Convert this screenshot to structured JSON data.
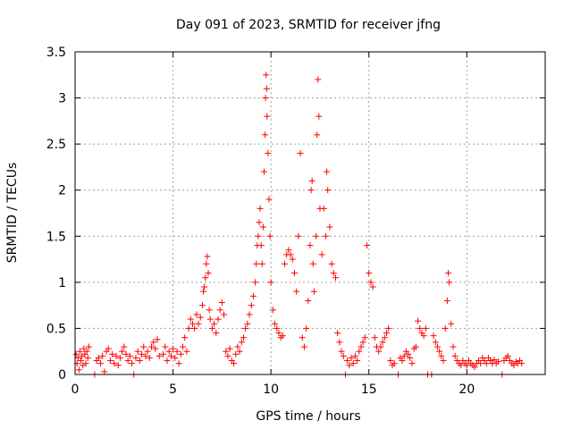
{
  "chart_data": {
    "type": "scatter",
    "title": "Day 091 of 2023, SRMTID for receiver jfng",
    "xlabel": "GPS time / hours",
    "ylabel": "SRMTID / TECUs",
    "xlim": [
      0,
      24
    ],
    "ylim": [
      0,
      3.5
    ],
    "xticks": [
      "0",
      "5",
      "10",
      "15",
      "20"
    ],
    "yticks": [
      "0",
      "0.5",
      "1",
      "1.5",
      "2",
      "2.5",
      "3",
      "3.5"
    ],
    "grid": true,
    "marker": "+",
    "colors": {
      "series": "#ff0000",
      "grid": "#a0a0a0",
      "axis": "#000000"
    },
    "series": [
      {
        "name": "SRMTID",
        "points": [
          [
            0.05,
            0.22
          ],
          [
            0.1,
            0.12
          ],
          [
            0.15,
            0.18
          ],
          [
            0.2,
            0.05
          ],
          [
            0.25,
            0.25
          ],
          [
            0.3,
            0.15
          ],
          [
            0.35,
            0.2
          ],
          [
            0.4,
            0.1
          ],
          [
            0.45,
            0.28
          ],
          [
            0.5,
            0.22
          ],
          [
            0.55,
            0.12
          ],
          [
            0.6,
            0.25
          ],
          [
            0.65,
            0.18
          ],
          [
            0.7,
            0.3
          ],
          [
            1.0,
            0.0
          ],
          [
            1.1,
            0.15
          ],
          [
            1.2,
            0.18
          ],
          [
            1.3,
            0.12
          ],
          [
            1.4,
            0.2
          ],
          [
            1.5,
            0.03
          ],
          [
            1.6,
            0.25
          ],
          [
            1.7,
            0.28
          ],
          [
            1.8,
            0.15
          ],
          [
            1.9,
            0.22
          ],
          [
            2.0,
            0.12
          ],
          [
            2.1,
            0.2
          ],
          [
            2.2,
            0.1
          ],
          [
            2.3,
            0.18
          ],
          [
            2.4,
            0.25
          ],
          [
            2.5,
            0.3
          ],
          [
            2.6,
            0.22
          ],
          [
            2.7,
            0.15
          ],
          [
            2.8,
            0.2
          ],
          [
            2.9,
            0.12
          ],
          [
            3.0,
            0.0
          ],
          [
            3.1,
            0.18
          ],
          [
            3.2,
            0.25
          ],
          [
            3.3,
            0.15
          ],
          [
            3.4,
            0.22
          ],
          [
            3.5,
            0.3
          ],
          [
            3.6,
            0.2
          ],
          [
            3.7,
            0.25
          ],
          [
            3.8,
            0.18
          ],
          [
            3.9,
            0.3
          ],
          [
            4.0,
            0.35
          ],
          [
            4.1,
            0.28
          ],
          [
            4.2,
            0.38
          ],
          [
            4.3,
            0.2
          ],
          [
            4.5,
            0.22
          ],
          [
            4.6,
            0.3
          ],
          [
            4.7,
            0.15
          ],
          [
            4.8,
            0.25
          ],
          [
            4.9,
            0.2
          ],
          [
            5.0,
            0.28
          ],
          [
            5.1,
            0.18
          ],
          [
            5.2,
            0.25
          ],
          [
            5.3,
            0.12
          ],
          [
            5.4,
            0.22
          ],
          [
            5.5,
            0.3
          ],
          [
            5.6,
            0.4
          ],
          [
            5.7,
            0.25
          ],
          [
            5.8,
            0.5
          ],
          [
            5.9,
            0.6
          ],
          [
            6.0,
            0.55
          ],
          [
            6.1,
            0.5
          ],
          [
            6.2,
            0.65
          ],
          [
            6.3,
            0.55
          ],
          [
            6.4,
            0.62
          ],
          [
            6.5,
            0.75
          ],
          [
            6.55,
            0.9
          ],
          [
            6.6,
            0.95
          ],
          [
            6.65,
            1.05
          ],
          [
            6.7,
            1.2
          ],
          [
            6.75,
            1.28
          ],
          [
            6.8,
            1.1
          ],
          [
            6.85,
            0.7
          ],
          [
            6.9,
            0.6
          ],
          [
            7.0,
            0.5
          ],
          [
            7.1,
            0.55
          ],
          [
            7.2,
            0.45
          ],
          [
            7.3,
            0.6
          ],
          [
            7.4,
            0.7
          ],
          [
            7.5,
            0.78
          ],
          [
            7.6,
            0.65
          ],
          [
            7.7,
            0.25
          ],
          [
            7.8,
            0.2
          ],
          [
            7.9,
            0.28
          ],
          [
            8.0,
            0.15
          ],
          [
            8.1,
            0.12
          ],
          [
            8.2,
            0.22
          ],
          [
            8.3,
            0.3
          ],
          [
            8.4,
            0.25
          ],
          [
            8.5,
            0.35
          ],
          [
            8.6,
            0.4
          ],
          [
            8.7,
            0.5
          ],
          [
            8.8,
            0.55
          ],
          [
            8.9,
            0.65
          ],
          [
            9.0,
            0.75
          ],
          [
            9.1,
            0.85
          ],
          [
            9.2,
            1.0
          ],
          [
            9.25,
            1.2
          ],
          [
            9.3,
            1.4
          ],
          [
            9.35,
            1.5
          ],
          [
            9.4,
            1.65
          ],
          [
            9.45,
            1.8
          ],
          [
            9.5,
            1.4
          ],
          [
            9.55,
            1.2
          ],
          [
            9.6,
            1.6
          ],
          [
            9.65,
            2.2
          ],
          [
            9.7,
            2.6
          ],
          [
            9.72,
            3.0
          ],
          [
            9.75,
            3.25
          ],
          [
            9.78,
            3.1
          ],
          [
            9.8,
            2.8
          ],
          [
            9.85,
            2.4
          ],
          [
            9.9,
            1.9
          ],
          [
            9.95,
            1.5
          ],
          [
            10.0,
            1.0
          ],
          [
            10.1,
            0.7
          ],
          [
            10.2,
            0.55
          ],
          [
            10.3,
            0.5
          ],
          [
            10.4,
            0.45
          ],
          [
            10.5,
            0.4
          ],
          [
            10.6,
            0.42
          ],
          [
            10.7,
            1.2
          ],
          [
            10.8,
            1.3
          ],
          [
            10.9,
            1.35
          ],
          [
            11.0,
            1.3
          ],
          [
            11.1,
            1.25
          ],
          [
            11.2,
            1.1
          ],
          [
            11.3,
            0.9
          ],
          [
            11.4,
            1.5
          ],
          [
            11.5,
            2.4
          ],
          [
            11.6,
            0.4
          ],
          [
            11.7,
            0.3
          ],
          [
            11.8,
            0.5
          ],
          [
            11.9,
            0.8
          ],
          [
            12.0,
            1.4
          ],
          [
            12.05,
            2.0
          ],
          [
            12.1,
            2.1
          ],
          [
            12.15,
            1.2
          ],
          [
            12.2,
            0.9
          ],
          [
            12.3,
            1.5
          ],
          [
            12.35,
            2.6
          ],
          [
            12.4,
            3.2
          ],
          [
            12.45,
            2.8
          ],
          [
            12.5,
            1.8
          ],
          [
            12.6,
            1.3
          ],
          [
            12.7,
            1.8
          ],
          [
            12.8,
            1.5
          ],
          [
            12.85,
            2.2
          ],
          [
            12.9,
            2.0
          ],
          [
            13.0,
            1.6
          ],
          [
            13.1,
            1.2
          ],
          [
            13.2,
            1.1
          ],
          [
            13.3,
            1.05
          ],
          [
            13.4,
            0.45
          ],
          [
            13.5,
            0.35
          ],
          [
            13.6,
            0.25
          ],
          [
            13.7,
            0.2
          ],
          [
            13.8,
            0.0
          ],
          [
            13.9,
            0.15
          ],
          [
            14.0,
            0.1
          ],
          [
            14.1,
            0.18
          ],
          [
            14.2,
            0.12
          ],
          [
            14.3,
            0.2
          ],
          [
            14.4,
            0.15
          ],
          [
            14.5,
            0.25
          ],
          [
            14.6,
            0.3
          ],
          [
            14.7,
            0.35
          ],
          [
            14.8,
            0.4
          ],
          [
            14.9,
            1.4
          ],
          [
            15.0,
            1.1
          ],
          [
            15.1,
            1.0
          ],
          [
            15.2,
            0.95
          ],
          [
            15.3,
            0.4
          ],
          [
            15.4,
            0.3
          ],
          [
            15.5,
            0.25
          ],
          [
            15.6,
            0.3
          ],
          [
            15.7,
            0.35
          ],
          [
            15.8,
            0.4
          ],
          [
            15.9,
            0.45
          ],
          [
            16.0,
            0.5
          ],
          [
            16.1,
            0.15
          ],
          [
            16.2,
            0.1
          ],
          [
            16.3,
            0.12
          ],
          [
            16.5,
            0.0
          ],
          [
            16.6,
            0.18
          ],
          [
            16.7,
            0.15
          ],
          [
            16.8,
            0.2
          ],
          [
            16.9,
            0.25
          ],
          [
            17.0,
            0.22
          ],
          [
            17.1,
            0.18
          ],
          [
            17.2,
            0.12
          ],
          [
            17.3,
            0.28
          ],
          [
            17.4,
            0.3
          ],
          [
            17.5,
            0.58
          ],
          [
            17.6,
            0.5
          ],
          [
            17.7,
            0.45
          ],
          [
            17.8,
            0.42
          ],
          [
            17.9,
            0.5
          ],
          [
            18.0,
            0.0
          ],
          [
            18.2,
            0.0
          ],
          [
            18.3,
            0.42
          ],
          [
            18.4,
            0.35
          ],
          [
            18.5,
            0.3
          ],
          [
            18.6,
            0.25
          ],
          [
            18.7,
            0.2
          ],
          [
            18.8,
            0.15
          ],
          [
            18.9,
            0.5
          ],
          [
            19.0,
            0.8
          ],
          [
            19.05,
            1.1
          ],
          [
            19.1,
            1.0
          ],
          [
            19.2,
            0.55
          ],
          [
            19.3,
            0.3
          ],
          [
            19.4,
            0.2
          ],
          [
            19.5,
            0.15
          ],
          [
            19.6,
            0.12
          ],
          [
            19.7,
            0.1
          ],
          [
            19.8,
            0.15
          ],
          [
            19.9,
            0.12
          ],
          [
            20.0,
            0.1
          ],
          [
            20.1,
            0.15
          ],
          [
            20.2,
            0.12
          ],
          [
            20.3,
            0.1
          ],
          [
            20.4,
            0.08
          ],
          [
            20.5,
            0.12
          ],
          [
            20.6,
            0.15
          ],
          [
            20.7,
            0.12
          ],
          [
            20.8,
            0.18
          ],
          [
            20.9,
            0.15
          ],
          [
            21.0,
            0.12
          ],
          [
            21.1,
            0.18
          ],
          [
            21.2,
            0.15
          ],
          [
            21.3,
            0.12
          ],
          [
            21.4,
            0.16
          ],
          [
            21.5,
            0.12
          ],
          [
            21.6,
            0.14
          ],
          [
            21.8,
            0.0
          ],
          [
            21.9,
            0.15
          ],
          [
            22.0,
            0.18
          ],
          [
            22.1,
            0.2
          ],
          [
            22.2,
            0.15
          ],
          [
            22.3,
            0.12
          ],
          [
            22.4,
            0.1
          ],
          [
            22.5,
            0.14
          ],
          [
            22.6,
            0.12
          ],
          [
            22.7,
            0.15
          ],
          [
            22.8,
            0.12
          ]
        ]
      }
    ]
  }
}
